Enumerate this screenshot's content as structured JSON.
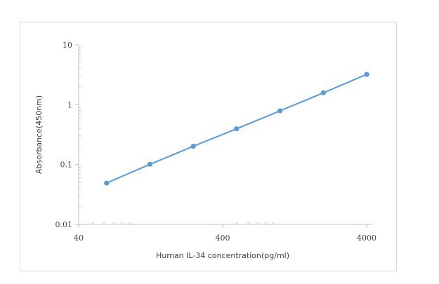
{
  "chart_data": {
    "type": "line",
    "title": "",
    "xlabel": "Human IL-34 concentration(pg/ml)",
    "ylabel": "Absorbance(450nm)",
    "x_scale": "log",
    "y_scale": "log",
    "xlim": [
      40,
      4000
    ],
    "ylim": [
      0.01,
      10
    ],
    "x_ticks": [
      40,
      400,
      4000
    ],
    "x_tick_labels": [
      "40",
      "400",
      "4000"
    ],
    "y_ticks": [
      0.01,
      0.1,
      1,
      10
    ],
    "y_tick_labels": [
      "0.01",
      "0.1",
      "1",
      "10"
    ],
    "grid": false,
    "legend": "none",
    "series": [
      {
        "color": "#5b9bd5",
        "x": [
          62.5,
          125,
          250,
          500,
          1000,
          2000,
          4000
        ],
        "y": [
          0.049,
          0.101,
          0.202,
          0.396,
          0.79,
          1.58,
          3.21
        ]
      }
    ]
  }
}
